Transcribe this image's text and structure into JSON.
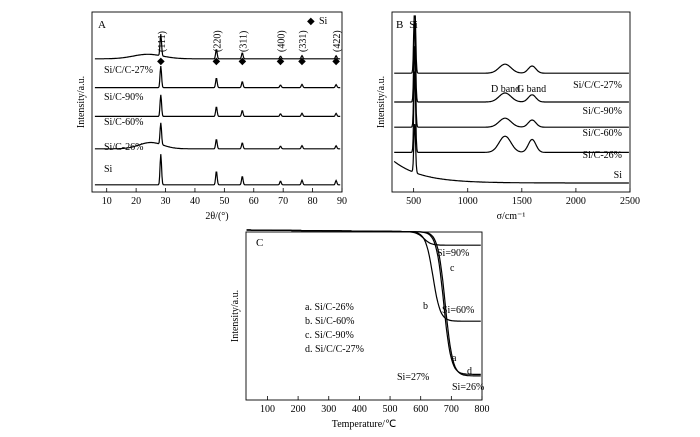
{
  "chart_data": [
    {
      "type": "line",
      "panel": "A",
      "xlabel": "2θ/(°)",
      "ylabel": "Intensity/a.u.",
      "xlim": [
        5,
        90
      ],
      "xticks": [
        10,
        20,
        30,
        40,
        50,
        60,
        70,
        80,
        90
      ],
      "legend": {
        "marker": "◆",
        "label": "Si"
      },
      "peaks": [
        {
          "x": 28.4,
          "label": "(111)"
        },
        {
          "x": 47.3,
          "label": "(220)"
        },
        {
          "x": 56.1,
          "label": "(311)"
        },
        {
          "x": 69.1,
          "label": "(400)"
        },
        {
          "x": 76.4,
          "label": "(331)"
        },
        {
          "x": 88.0,
          "label": "(422)"
        }
      ],
      "series": [
        {
          "name": "Si",
          "offset": 0.04
        },
        {
          "name": "Si/C-26%",
          "offset": 0.24
        },
        {
          "name": "Si/C-60%",
          "offset": 0.42
        },
        {
          "name": "Si/C-90%",
          "offset": 0.58
        },
        {
          "name": "Si/C/C-27%",
          "offset": 0.74
        }
      ]
    },
    {
      "type": "line",
      "panel": "B",
      "xlabel": "σ/cm⁻¹",
      "ylabel": "Intensity/a.u.",
      "xlim": [
        300,
        2500
      ],
      "xticks": [
        500,
        1000,
        1500,
        2000,
        2500
      ],
      "annotations": [
        {
          "x": 480,
          "label": "Si"
        },
        {
          "x": 1350,
          "label": "D band"
        },
        {
          "x": 1590,
          "label": "G band"
        }
      ],
      "series": [
        {
          "name": "Si",
          "offset": 0.05
        },
        {
          "name": "Si/C-26%",
          "offset": 0.22
        },
        {
          "name": "Si/C-60%",
          "offset": 0.36
        },
        {
          "name": "Si/C-90%",
          "offset": 0.5
        },
        {
          "name": "Si/C/C-27%",
          "offset": 0.66
        }
      ]
    },
    {
      "type": "line",
      "panel": "C",
      "xlabel": "Temperature/℃",
      "ylabel": "Intensity/a.u.",
      "xlim": [
        30,
        800
      ],
      "xticks": [
        100,
        200,
        300,
        400,
        500,
        600,
        700,
        800
      ],
      "legend_lines": [
        "a. Si/C-26%",
        "b. Si/C-60%",
        "c. Si/C-90%",
        "d. Si/C/C-27%"
      ],
      "curve_labels": [
        "a",
        "b",
        "c",
        "d"
      ],
      "annotations": [
        "Si=90%",
        "Si=60%",
        "Si=27%",
        "Si=26%"
      ],
      "series": [
        {
          "name": "a",
          "final": 0.04,
          "onset": 680
        },
        {
          "name": "b",
          "final": 0.4,
          "onset": 640
        },
        {
          "name": "c",
          "final": 0.9,
          "onset": 610
        },
        {
          "name": "d",
          "final": 0.05,
          "onset": 675
        }
      ]
    }
  ]
}
